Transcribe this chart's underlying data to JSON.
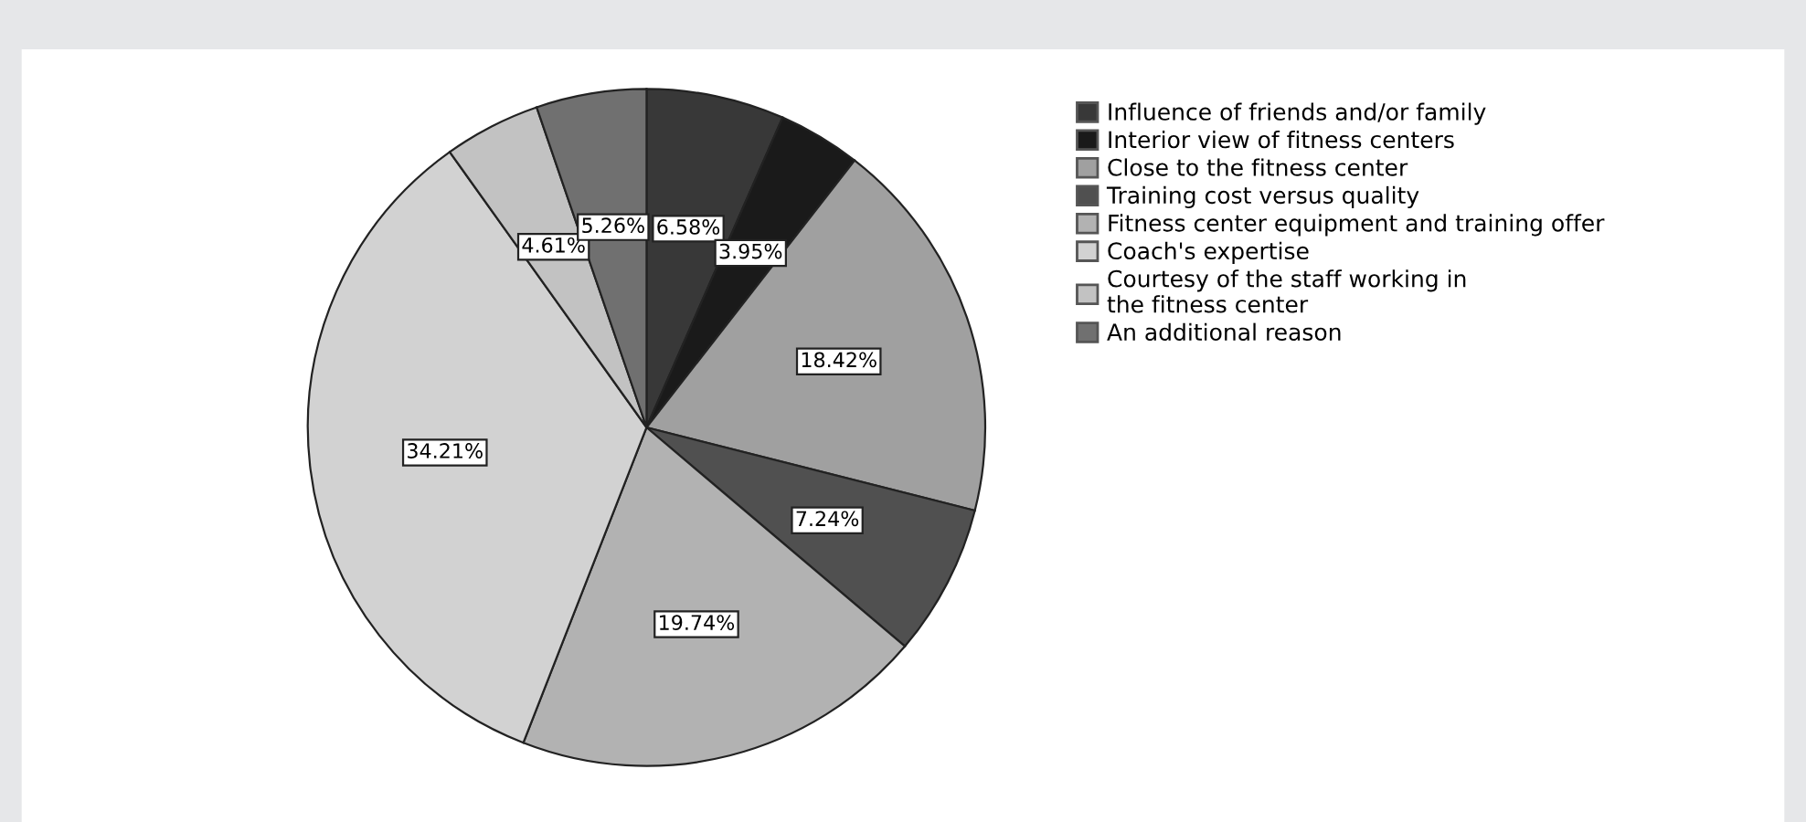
{
  "chart_data": {
    "type": "pie",
    "categories": [
      "Influence of friends and/or family",
      "Interior view of fitness centers",
      "Close to the fitness center",
      "Training cost versus quality",
      "Fitness center equipment and training offer",
      "Coach's expertise",
      "Courtesy of the staff working in\nthe fitness center",
      "An additional reason"
    ],
    "values": [
      6.58,
      3.95,
      18.42,
      7.24,
      19.74,
      34.21,
      4.61,
      5.26
    ],
    "value_labels": [
      "6.58%",
      "3.95%",
      "18.42%",
      "7.24%",
      "19.74%",
      "34.21%",
      "4.61%",
      "5.26%"
    ],
    "colors": [
      "#383838",
      "#1a1a1a",
      "#a0a0a0",
      "#505050",
      "#b2b2b2",
      "#d2d2d2",
      "#c2c2c2",
      "#707070"
    ],
    "legend": "top right"
  }
}
